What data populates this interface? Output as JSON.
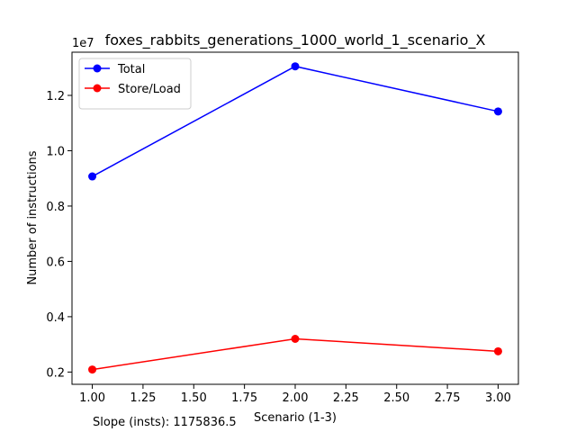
{
  "chart_data": {
    "type": "line",
    "title": "foxes_rabbits_generations_1000_world_1_scenario_X",
    "xlabel": "Scenario (1-3)",
    "ylabel": "Number of instructions",
    "y_scale_label": "1e7",
    "x": [
      1,
      2,
      3
    ],
    "xlim": [
      0.9,
      3.1
    ],
    "ylim": [
      1557000,
      13561000
    ],
    "x_ticks": [
      1.0,
      1.25,
      1.5,
      1.75,
      2.0,
      2.25,
      2.5,
      2.75,
      3.0
    ],
    "x_tick_labels": [
      "1.00",
      "1.25",
      "1.50",
      "1.75",
      "2.00",
      "2.25",
      "2.50",
      "2.75",
      "3.00"
    ],
    "y_ticks": [
      2000000,
      4000000,
      6000000,
      8000000,
      10000000,
      12000000
    ],
    "y_tick_labels": [
      "0.2",
      "0.4",
      "0.6",
      "0.8",
      "1.0",
      "1.2"
    ],
    "series": [
      {
        "name": "Total",
        "color": "#0000ff",
        "values": [
          9070000,
          13050000,
          11420000
        ]
      },
      {
        "name": "Store/Load",
        "color": "#ff0000",
        "values": [
          2090000,
          3200000,
          2750000
        ]
      }
    ],
    "legend_position": "top-left",
    "grid": false,
    "annotation": "Slope (insts): 1175836.5"
  }
}
